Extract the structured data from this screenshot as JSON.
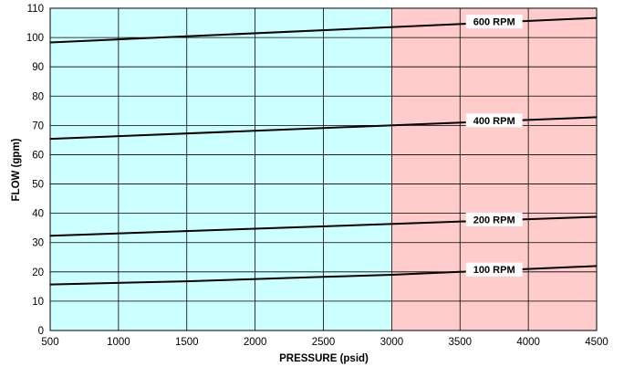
{
  "chart_data": {
    "type": "line",
    "xlabel": "PRESSURE (psid)",
    "ylabel": "FLOW (gpm)",
    "xlim": [
      500,
      4500
    ],
    "ylim": [
      0,
      110
    ],
    "x_ticks": [
      500,
      1000,
      1500,
      2000,
      2500,
      3000,
      3500,
      4000,
      4500
    ],
    "y_ticks": [
      0,
      10,
      20,
      30,
      40,
      50,
      60,
      70,
      80,
      90,
      100,
      110
    ],
    "grid": true,
    "regions": [
      {
        "x_from": 500,
        "x_to": 3000,
        "color": "#ccffff"
      },
      {
        "x_from": 3000,
        "x_to": 4500,
        "color": "#ffcccc"
      }
    ],
    "series": [
      {
        "name": "100 RPM",
        "x": [
          500,
          1500,
          2500,
          3000,
          3500,
          4000,
          4500
        ],
        "y": [
          15.7,
          16.8,
          18.3,
          19.0,
          20.0,
          21.0,
          22.0
        ]
      },
      {
        "name": "200 RPM",
        "x": [
          500,
          4500
        ],
        "y": [
          32.3,
          38.8
        ]
      },
      {
        "name": "400 RPM",
        "x": [
          500,
          4500
        ],
        "y": [
          65.4,
          72.8
        ]
      },
      {
        "name": "600 RPM",
        "x": [
          500,
          4500
        ],
        "y": [
          98.3,
          106.7
        ]
      }
    ]
  }
}
